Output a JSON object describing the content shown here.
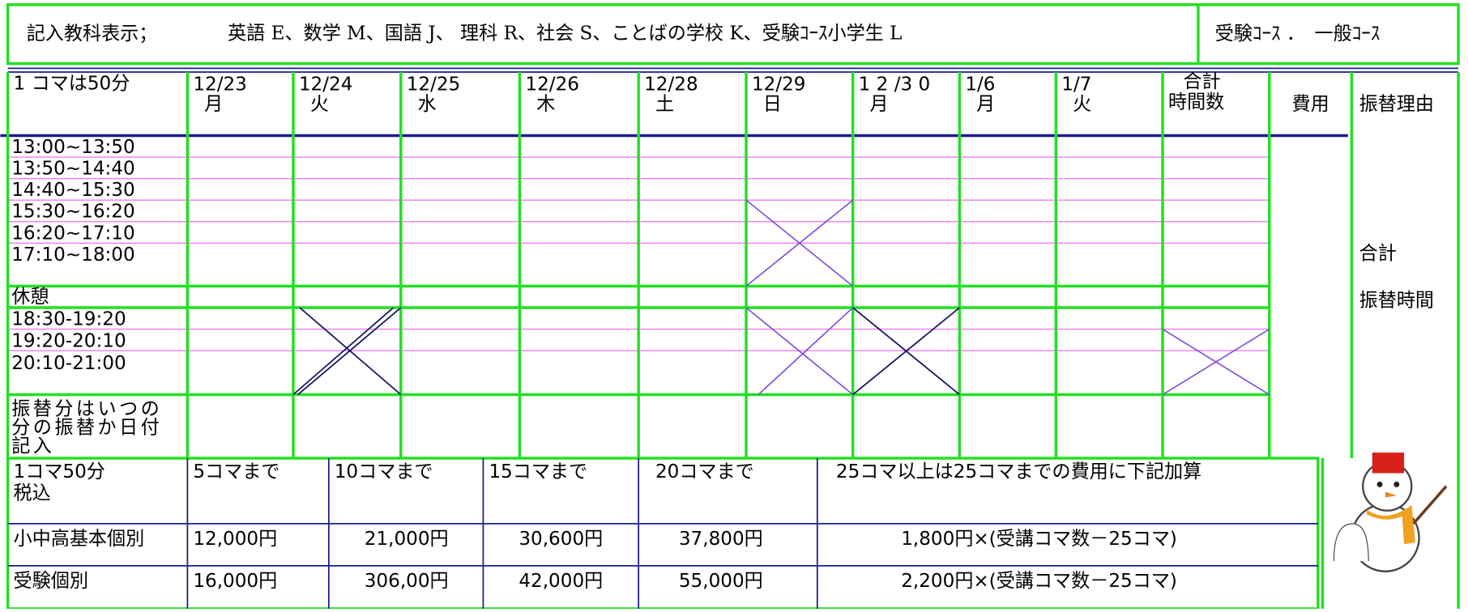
{
  "header": {
    "label": "記入教科表示；",
    "subjects": "英語 E、数学 M、国語 J、 理科 R、社会 S、ことばの学校 K、受験ｺｰｽ小学生 L",
    "course": "受験ｺｰｽ ．　一般ｺｰｽ"
  },
  "schedule": {
    "corner": "1 コマは50分",
    "days": [
      {
        "date": "12/23",
        "day": "月"
      },
      {
        "date": "12/24",
        "day": "火"
      },
      {
        "date": "12/25",
        "day": "水"
      },
      {
        "date": "12/26",
        "day": "木"
      },
      {
        "date": "12/28",
        "day": "土"
      },
      {
        "date": "12/29",
        "day": "日"
      },
      {
        "date": "1 2 /3 0",
        "day": "月"
      },
      {
        "date": "1/6",
        "day": "月"
      },
      {
        "date": "1/7",
        "day": "火"
      }
    ],
    "total_header": [
      "合計",
      "時間数"
    ],
    "cost_header": "費用",
    "reason_header": "振替理由",
    "slots": [
      "13:00~13:50",
      "13:50~14:40",
      "14:40~15:30",
      "15:30~16:20",
      "16:20~17:10",
      "17:10~18:00"
    ],
    "break": "休憩",
    "evening_slots": [
      "18:30-19:20",
      "19:20-20:10",
      "20:10-21:00"
    ],
    "transfer_note": [
      "振替分はいつの",
      "分の振替か日付",
      "記入"
    ],
    "side_labels": [
      "合計",
      "振替時間"
    ]
  },
  "prices": {
    "corner": [
      "1コマ50分",
      "税込"
    ],
    "headers": [
      "5コマまで",
      "10コマまで",
      "15コマまで",
      "20コマまで",
      "25コマ以上は25コマまでの費用に下記加算"
    ],
    "rows": [
      [
        "小中高基本個別",
        "12,000円",
        "21,000円",
        "30,600円",
        "37,800円",
        "1,800円×(受講コマ数－25コマ)"
      ],
      [
        "受験個別",
        "16,000円",
        "306,00円",
        "42,000円",
        "55,000円",
        "2,200円×(受講コマ数－25コマ)"
      ]
    ]
  }
}
